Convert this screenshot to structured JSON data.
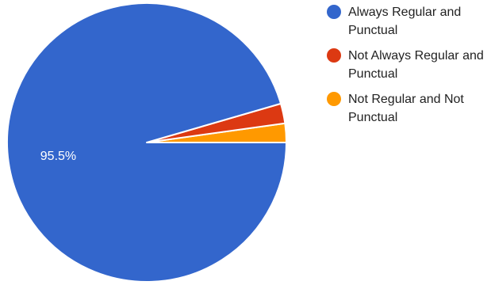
{
  "chart_data": {
    "type": "pie",
    "slices": [
      {
        "label": "Always Regular and Punctual",
        "value": 95.5,
        "color": "#3366cc",
        "data_label": "95.5%"
      },
      {
        "label": "Not Always Regular and Punctual",
        "value": 2.3,
        "color": "#dc3912",
        "data_label": ""
      },
      {
        "label": "Not Regular and Not Punctual",
        "value": 2.2,
        "color": "#ff9900",
        "data_label": ""
      }
    ],
    "start_angle_deg": 90,
    "direction": "counterclockwise",
    "legend_position": "right",
    "title": ""
  },
  "legend": {
    "items": [
      {
        "label": "Always Regular and Punctual",
        "color": "#3366cc"
      },
      {
        "label": "Not Always Regular and Punctual",
        "color": "#dc3912"
      },
      {
        "label": "Not Regular and Not Punctual",
        "color": "#ff9900"
      }
    ]
  }
}
